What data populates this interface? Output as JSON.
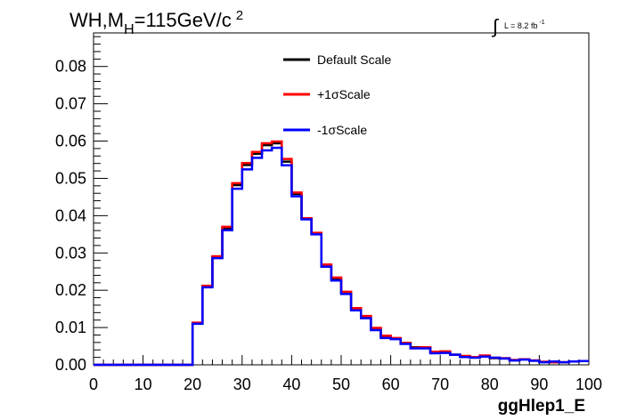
{
  "title": {
    "main": "WH,M",
    "sub": "H",
    "rest": "=115GeV/c",
    "sup": "2"
  },
  "lumi": {
    "text": "L = 8.2 fb",
    "sup": "-1"
  },
  "legend": [
    {
      "label": "Default Scale",
      "color": "#000000"
    },
    {
      "label": "+1σScale",
      "color": "#ff0000"
    },
    {
      "label": "-1σScale",
      "color": "#0000ff"
    }
  ],
  "xlabel": "ggHlep1_E",
  "chart_data": {
    "type": "line",
    "x_ticks": [
      "0",
      "10",
      "20",
      "30",
      "40",
      "50",
      "60",
      "70",
      "80",
      "90",
      "100"
    ],
    "y_ticks": [
      "0.00",
      "0.01",
      "0.02",
      "0.03",
      "0.04",
      "0.05",
      "0.06",
      "0.07",
      "0.08"
    ],
    "xlim": [
      0,
      100
    ],
    "ylim": [
      0,
      0.089
    ],
    "bin_edges": [
      0,
      2,
      4,
      6,
      8,
      10,
      12,
      14,
      16,
      18,
      20,
      22,
      24,
      26,
      28,
      30,
      32,
      34,
      36,
      38,
      40,
      42,
      44,
      46,
      48,
      50,
      52,
      54,
      56,
      58,
      60,
      62,
      64,
      66,
      68,
      70,
      72,
      74,
      76,
      78,
      80,
      82,
      84,
      86,
      88,
      90,
      92,
      94,
      96,
      98,
      100
    ],
    "series": [
      {
        "name": "Default Scale",
        "color": "#000000",
        "values": [
          0,
          0,
          0,
          0,
          0,
          0,
          0,
          0,
          0,
          0,
          0.0112,
          0.0211,
          0.0289,
          0.0367,
          0.0482,
          0.0536,
          0.0566,
          0.0589,
          0.0594,
          0.0545,
          0.0458,
          0.0393,
          0.0353,
          0.0267,
          0.0231,
          0.0194,
          0.015,
          0.013,
          0.0098,
          0.0076,
          0.0071,
          0.0058,
          0.0047,
          0.0046,
          0.0034,
          0.0035,
          0.0027,
          0.0023,
          0.002,
          0.0024,
          0.0018,
          0.0017,
          0.0012,
          0.0015,
          0.0011,
          0.0008,
          0.0007,
          0.0007,
          0.0009,
          0.001
        ]
      },
      {
        "name": "+1σScale",
        "color": "#ff0000",
        "values": [
          0,
          0,
          0,
          0,
          0,
          0,
          0,
          0,
          0,
          0,
          0.0113,
          0.0212,
          0.0291,
          0.037,
          0.0487,
          0.0541,
          0.0571,
          0.0594,
          0.0599,
          0.0552,
          0.0462,
          0.0393,
          0.0354,
          0.0269,
          0.0234,
          0.0196,
          0.0152,
          0.0131,
          0.0099,
          0.0078,
          0.0072,
          0.0059,
          0.0046,
          0.0047,
          0.0035,
          0.0036,
          0.0027,
          0.0024,
          0.0021,
          0.0025,
          0.0019,
          0.0018,
          0.0013,
          0.0015,
          0.0012,
          0.0008,
          0.0007,
          0.0007,
          0.0009,
          0.001
        ]
      },
      {
        "name": "-1σScale",
        "color": "#0000ff",
        "values": [
          0,
          0,
          0,
          0,
          0,
          0,
          0,
          0,
          0,
          0,
          0.011,
          0.0208,
          0.0286,
          0.0361,
          0.0472,
          0.0524,
          0.0555,
          0.0575,
          0.0582,
          0.0535,
          0.0452,
          0.039,
          0.035,
          0.0263,
          0.0226,
          0.019,
          0.0146,
          0.0125,
          0.0093,
          0.0072,
          0.0069,
          0.0056,
          0.0044,
          0.0044,
          0.0031,
          0.0032,
          0.0027,
          0.0021,
          0.0019,
          0.0022,
          0.0019,
          0.0017,
          0.0012,
          0.0014,
          0.0011,
          0.0007,
          0.0009,
          0.0007,
          0.0009,
          0.001
        ]
      }
    ]
  }
}
